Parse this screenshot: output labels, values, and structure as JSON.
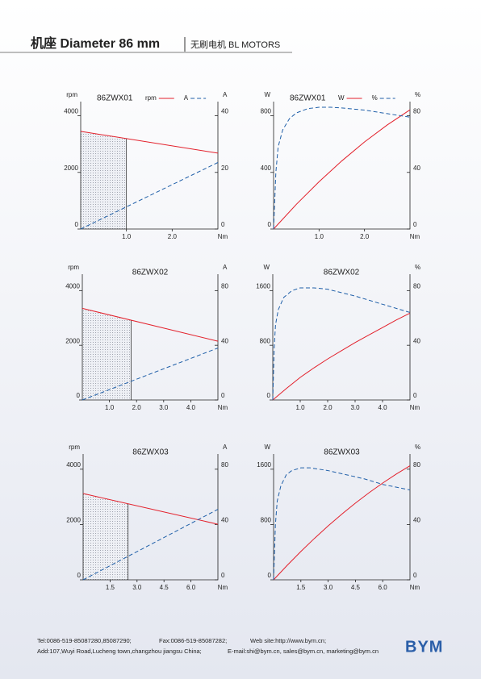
{
  "header": {
    "title": "机座 Diameter 86 mm",
    "subtitle": "无刷电机 BL MOTORS"
  },
  "chart_data": [
    {
      "type": "line",
      "title": "86ZWX01",
      "y_label": "rpm",
      "y2_label": "A",
      "x_label": "Nm",
      "xlim": [
        0,
        3
      ],
      "xticks": [
        {
          "value": 1,
          "label": "1.0"
        },
        {
          "value": 2,
          "label": "2.0"
        }
      ],
      "ylim": [
        0,
        4500
      ],
      "yticks": [
        0,
        2000,
        4000
      ],
      "y2lim": [
        0,
        45
      ],
      "y2ticks": [
        0,
        20,
        40
      ],
      "shade_xlim": [
        0,
        1.0
      ],
      "series": [
        {
          "name": "rpm",
          "color": "#e3202b",
          "x": [
            0,
            3
          ],
          "values": [
            3450,
            2680
          ]
        },
        {
          "name": "A",
          "color": "#1f5fa8",
          "dashed": true,
          "axis": "y2",
          "x": [
            0,
            3
          ],
          "values": [
            0,
            23.5
          ]
        }
      ]
    },
    {
      "type": "line",
      "title": "86ZWX01",
      "y_label": "W",
      "y2_label": "%",
      "x_label": "Nm",
      "xlim": [
        0,
        3
      ],
      "xticks": [
        {
          "value": 1,
          "label": "1.0"
        },
        {
          "value": 2,
          "label": "2.0"
        }
      ],
      "ylim": [
        0,
        900
      ],
      "yticks": [
        0,
        400,
        800
      ],
      "y2lim": [
        0,
        90
      ],
      "y2ticks": [
        0,
        40,
        80
      ],
      "series": [
        {
          "name": "W",
          "color": "#e3202b",
          "x": [
            0,
            0.5,
            1,
            1.5,
            2,
            2.5,
            3
          ],
          "values": [
            0,
            174,
            334,
            481,
            615,
            735,
            842
          ]
        },
        {
          "name": "%",
          "color": "#1f5fa8",
          "dashed": true,
          "axis": "y2",
          "x": [
            0,
            0.05,
            0.1,
            0.2,
            0.35,
            0.5,
            0.75,
            1,
            1.25,
            1.5,
            2,
            2.5,
            3
          ],
          "values": [
            0,
            40,
            58,
            70,
            78,
            82,
            85,
            86,
            86,
            85.5,
            84,
            81.5,
            79
          ]
        }
      ]
    },
    {
      "type": "line",
      "title": "86ZWX02",
      "y_label": "rpm",
      "y2_label": "A",
      "x_label": "Nm",
      "xlim": [
        0,
        5
      ],
      "xticks": [
        {
          "value": 1,
          "label": "1.0"
        },
        {
          "value": 2,
          "label": "2.0"
        },
        {
          "value": 3,
          "label": "3.0"
        },
        {
          "value": 4,
          "label": "4.0"
        }
      ],
      "ylim": [
        0,
        4600
      ],
      "yticks": [
        0,
        2000,
        4000
      ],
      "y2lim": [
        0,
        92
      ],
      "y2ticks": [
        0,
        40,
        80
      ],
      "shade_xlim": [
        0,
        1.8
      ],
      "series": [
        {
          "color": "#e3202b",
          "x": [
            0,
            5
          ],
          "values": [
            3350,
            2150
          ]
        },
        {
          "color": "#1f5fa8",
          "dashed": true,
          "axis": "y2",
          "x": [
            0,
            5
          ],
          "values": [
            0,
            38
          ]
        }
      ]
    },
    {
      "type": "line",
      "title": "86ZWX02",
      "y_label": "W",
      "y2_label": "%",
      "x_label": "Nm",
      "xlim": [
        0,
        5
      ],
      "xticks": [
        {
          "value": 1,
          "label": "1.0"
        },
        {
          "value": 2,
          "label": "2.0"
        },
        {
          "value": 3,
          "label": "3.0"
        },
        {
          "value": 4,
          "label": "4.0"
        }
      ],
      "ylim": [
        0,
        1840
      ],
      "yticks": [
        0,
        800,
        1600
      ],
      "y2lim": [
        0,
        92
      ],
      "y2ticks": [
        0,
        40,
        80
      ],
      "series": [
        {
          "color": "#e3202b",
          "x": [
            0,
            0.5,
            1,
            1.5,
            2,
            2.5,
            3,
            3.5,
            4,
            4.5,
            5
          ],
          "values": [
            0,
            170,
            330,
            470,
            600,
            720,
            840,
            950,
            1060,
            1170,
            1270
          ]
        },
        {
          "color": "#1f5fa8",
          "dashed": true,
          "axis": "y2",
          "x": [
            0,
            0.05,
            0.1,
            0.2,
            0.4,
            0.7,
            1,
            1.5,
            2,
            3,
            4,
            5
          ],
          "values": [
            0,
            38,
            55,
            66,
            75,
            80,
            82,
            82,
            81,
            76,
            70,
            64
          ]
        }
      ]
    },
    {
      "type": "line",
      "title": "86ZWX03",
      "y_label": "rpm",
      "y2_label": "A",
      "x_label": "Nm",
      "xlim": [
        0,
        7.5
      ],
      "xticks": [
        1.5,
        {
          "value": 3,
          "label": "3.0"
        },
        4.5,
        {
          "value": 6,
          "label": "6.0"
        }
      ],
      "ylim": [
        0,
        4550
      ],
      "yticks": [
        0,
        2000,
        4000
      ],
      "y2lim": [
        0,
        91
      ],
      "y2ticks": [
        0,
        40,
        80
      ],
      "shade_xlim": [
        0,
        2.5
      ],
      "series": [
        {
          "color": "#e3202b",
          "x": [
            0,
            7.5
          ],
          "values": [
            3120,
            2010
          ]
        },
        {
          "color": "#1f5fa8",
          "dashed": true,
          "axis": "y2",
          "x": [
            0,
            7.5
          ],
          "values": [
            0,
            51
          ]
        }
      ]
    },
    {
      "type": "line",
      "title": "86ZWX03",
      "y_label": "W",
      "y2_label": "%",
      "x_label": "Nm",
      "xlim": [
        0,
        7.5
      ],
      "xticks": [
        1.5,
        {
          "value": 3,
          "label": "3.0"
        },
        4.5,
        {
          "value": 6,
          "label": "6.0"
        }
      ],
      "ylim": [
        0,
        1820
      ],
      "yticks": [
        0,
        800,
        1600
      ],
      "y2lim": [
        0,
        91
      ],
      "y2ticks": [
        0,
        40,
        80
      ],
      "series": [
        {
          "color": "#e3202b",
          "x": [
            0,
            0.75,
            1.5,
            2.25,
            3,
            3.75,
            4.5,
            5.25,
            6,
            6.75,
            7.5
          ],
          "values": [
            0,
            210,
            410,
            600,
            780,
            950,
            1110,
            1260,
            1400,
            1530,
            1650
          ]
        },
        {
          "color": "#1f5fa8",
          "dashed": true,
          "axis": "y2",
          "x": [
            0,
            0.1,
            0.2,
            0.4,
            0.7,
            1,
            1.5,
            2,
            3,
            4,
            5,
            6,
            7.5
          ],
          "values": [
            0,
            40,
            57,
            68,
            76,
            79,
            81,
            81,
            79,
            76,
            73,
            69,
            65
          ]
        }
      ]
    }
  ],
  "footer": {
    "tel": "Tel:0086-519-85087280,85087290;",
    "fax": "Fax:0086-519-85087282;",
    "web": "Web site:http://www.bym.cn;",
    "address": "Add:107,Wuyi Road,Lucheng town,changzhou jiangsu China;",
    "email": "E-mail:shi@bym.cn, sales@bym.cn, marketing@bym.cn",
    "logo": "BYM"
  }
}
